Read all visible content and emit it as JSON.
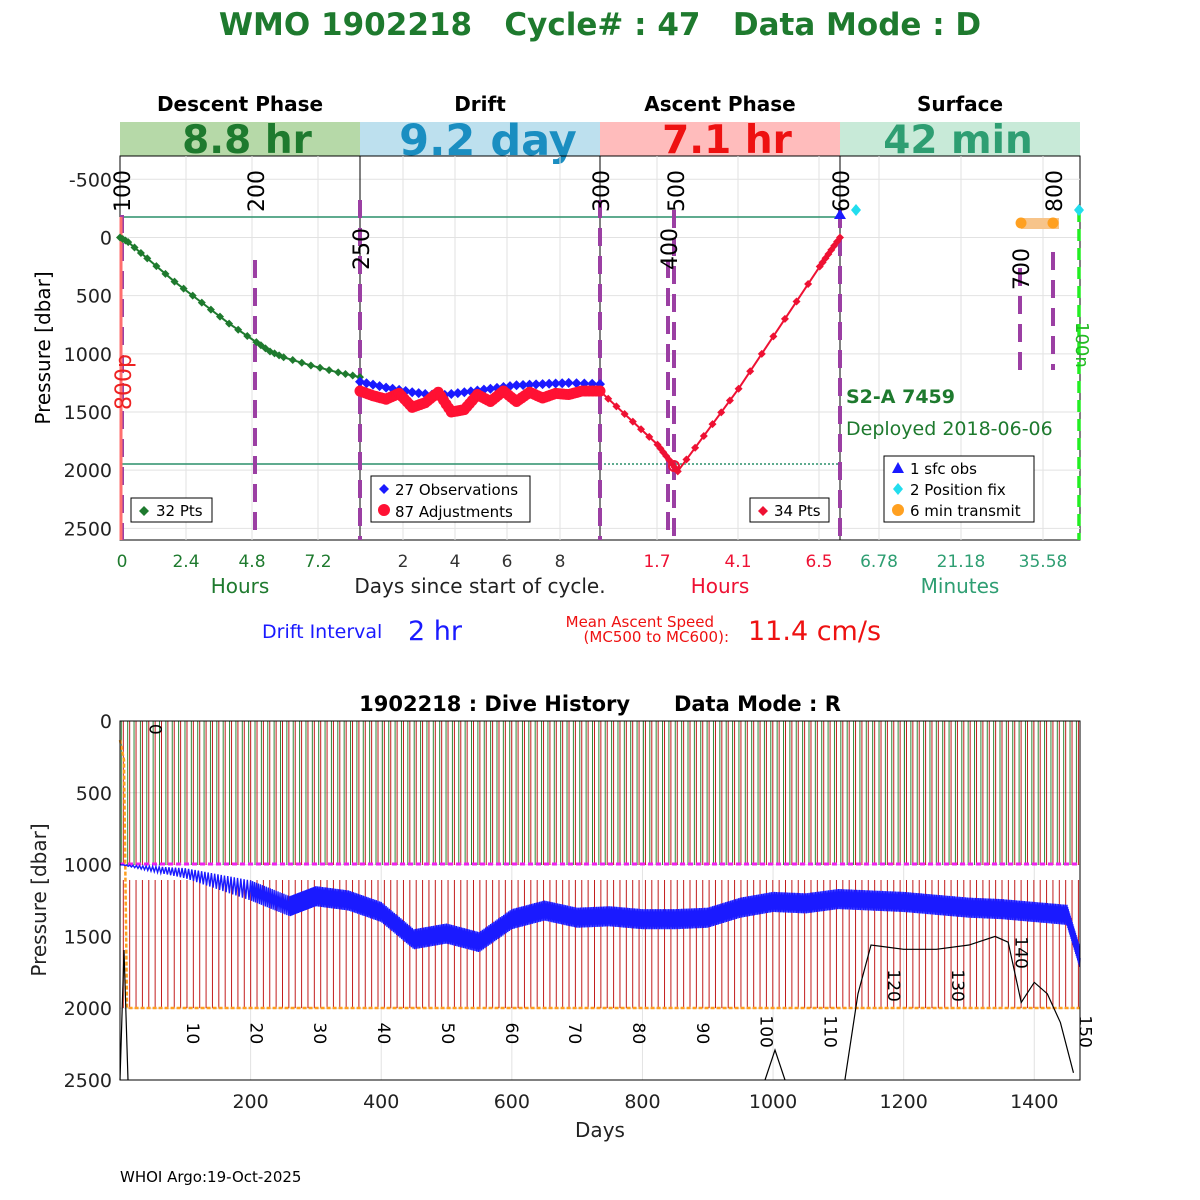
{
  "main_title": "WMO 1902218   Cycle# : 47   Data Mode : D",
  "top_chart": {
    "phases": [
      {
        "name": "Descent Phase",
        "duration": "8.8 hr",
        "band_color": "#b6d9a8",
        "text_color": "#1e7a2e"
      },
      {
        "name": "Drift",
        "duration": "9.2 day",
        "band_color": "#bde0ee",
        "text_color": "#1a8ec1"
      },
      {
        "name": "Ascent Phase",
        "duration": "7.1 hr",
        "band_color": "#ffbcbc",
        "text_color": "#ee1111"
      },
      {
        "name": "Surface",
        "duration": "42 min",
        "band_color": "#c8ead8",
        "text_color": "#2e9e72"
      }
    ],
    "ylabel": "Pressure [dbar]",
    "y_ticks": [
      "-500",
      "0",
      "500",
      "1000",
      "1500",
      "2000",
      "2500"
    ],
    "y_tick_values": [
      -500,
      0,
      500,
      1000,
      1500,
      2000,
      2500
    ],
    "ylim": [
      -700,
      2600
    ],
    "x_ticks": {
      "descent": [
        "0",
        "2.4",
        "4.8",
        "7.2"
      ],
      "drift": [
        "2",
        "4",
        "6",
        "8"
      ],
      "ascent": [
        "1.7",
        "4.1",
        "6.5"
      ],
      "surface": [
        "6.78",
        "21.18",
        "35.58"
      ]
    },
    "x_labels": {
      "descent": "Hours",
      "drift": "Days since start of cycle.",
      "ascent": "Hours",
      "surface": "Minutes"
    },
    "mc_labels": [
      "100",
      "200",
      "250",
      "300",
      "400",
      "500",
      "600",
      "700",
      "800"
    ],
    "side_labels": {
      "left": "800p",
      "right": "100n"
    },
    "float_info": {
      "name": "S2-A 7459",
      "deployed": "Deployed 2018-06-06"
    },
    "legends": {
      "descent": "32 Pts",
      "drift_obs": "27 Observations",
      "drift_adj": "87 Adjustments",
      "ascent": "34 Pts",
      "surface_sfc": "1 sfc obs",
      "surface_fix": "2 Position fix",
      "surface_tx": "6 min transmit"
    },
    "drift_interval_label": "Drift Interval",
    "drift_interval_value": "2 hr",
    "ascent_speed_label_1": "Mean Ascent Speed",
    "ascent_speed_label_2": "(MC500 to MC600):",
    "ascent_speed_value": "11.4 cm/s"
  },
  "chart_data": [
    {
      "type": "line",
      "title": "WMO 1902218   Cycle# : 47   Data Mode : D",
      "ylabel": "Pressure [dbar]",
      "ylim": [
        -700,
        2600
      ],
      "series": [
        {
          "name": "Descent (Hours)",
          "x": [
            0,
            0.3,
            1,
            2,
            3,
            4,
            5,
            5.5,
            6,
            7,
            8,
            8.8
          ],
          "y": [
            0,
            40,
            180,
            380,
            560,
            740,
            900,
            980,
            1030,
            1100,
            1160,
            1200
          ]
        },
        {
          "name": "Drift Observations (Days)",
          "x": [
            0,
            1,
            2,
            3,
            4,
            5,
            6,
            7,
            8,
            9.2
          ],
          "y": [
            1240,
            1290,
            1330,
            1360,
            1330,
            1300,
            1270,
            1260,
            1250,
            1260
          ]
        },
        {
          "name": "Drift Adjustments (Days)",
          "x": [
            0,
            0.5,
            1,
            1.5,
            2,
            2.5,
            3,
            3.5,
            4,
            4.5,
            5,
            5.5,
            6,
            6.5,
            7,
            7.5,
            8,
            8.5,
            9.2
          ],
          "y": [
            1320,
            1360,
            1390,
            1340,
            1460,
            1420,
            1330,
            1500,
            1480,
            1350,
            1410,
            1320,
            1410,
            1330,
            1380,
            1340,
            1350,
            1320,
            1320
          ]
        },
        {
          "name": "Ascent (Hours)",
          "x": [
            0,
            1.7,
            2.3,
            4.1,
            6.5,
            7.1
          ],
          "y": [
            1320,
            1780,
            2010,
            1300,
            250,
            0
          ]
        }
      ]
    },
    {
      "type": "line",
      "title": "1902218 : Dive History      Data Mode : R",
      "xlabel": "Days",
      "ylabel": "Pressure [dbar]",
      "xlim": [
        0,
        1470
      ],
      "ylim": [
        0,
        2500
      ],
      "x_ticks": [
        200,
        400,
        600,
        800,
        1000,
        1200,
        1400
      ],
      "y_ticks": [
        0,
        500,
        1000,
        1500,
        2000,
        2500
      ],
      "reference_lines": {
        "park_depth": 1000,
        "profile_depth": 2000
      },
      "cycle_labels": [
        "0",
        "10",
        "20",
        "30",
        "40",
        "50",
        "60",
        "70",
        "80",
        "90",
        "100",
        "110",
        "120",
        "130",
        "140",
        "150"
      ],
      "series": [
        {
          "name": "Drift pressure",
          "x": [
            0,
            100,
            200,
            260,
            300,
            350,
            400,
            450,
            500,
            550,
            600,
            650,
            700,
            750,
            800,
            850,
            900,
            950,
            1000,
            1050,
            1100,
            1150,
            1200,
            1250,
            1300,
            1350,
            1400,
            1450,
            1470
          ],
          "y": [
            1000,
            1060,
            1180,
            1290,
            1220,
            1250,
            1330,
            1520,
            1480,
            1540,
            1380,
            1320,
            1370,
            1360,
            1380,
            1380,
            1370,
            1300,
            1260,
            1270,
            1240,
            1250,
            1260,
            1280,
            1300,
            1310,
            1330,
            1350,
            1650
          ]
        },
        {
          "name": "Bottom depth",
          "x": [
            1110,
            1130,
            1150,
            1200,
            1250,
            1300,
            1340,
            1360,
            1380,
            1400,
            1420,
            1440,
            1460
          ],
          "y": [
            2500,
            1900,
            1560,
            1590,
            1590,
            1560,
            1500,
            1540,
            1960,
            1820,
            1900,
            2100,
            2450
          ]
        }
      ]
    }
  ],
  "bottom_chart": {
    "title": "1902218 : Dive History      Data Mode : R",
    "xlabel": "Days",
    "ylabel": "Pressure [dbar]",
    "x_ticks": [
      "200",
      "400",
      "600",
      "800",
      "1000",
      "1200",
      "1400"
    ],
    "x_tick_values": [
      200,
      400,
      600,
      800,
      1000,
      1200,
      1400
    ],
    "y_ticks": [
      "0",
      "500",
      "1000",
      "1500",
      "2000",
      "2500"
    ],
    "y_tick_values": [
      0,
      500,
      1000,
      1500,
      2000,
      2500
    ],
    "cycle_labels": [
      "0",
      "10",
      "20",
      "30",
      "40",
      "50",
      "60",
      "70",
      "80",
      "90",
      "100",
      "110",
      "120",
      "130",
      "140",
      "150"
    ],
    "cycle_label_days": [
      2,
      60,
      157,
      254,
      352,
      450,
      548,
      645,
      743,
      841,
      938,
      1036,
      1133,
      1231,
      1328,
      1426
    ],
    "cycle_label_depths": [
      20,
      2100,
      2100,
      2100,
      2100,
      2100,
      2100,
      2100,
      2100,
      2100,
      2050,
      2050,
      1730,
      1730,
      1500,
      2050
    ]
  },
  "footer": "WHOI Argo:19-Oct-2025"
}
